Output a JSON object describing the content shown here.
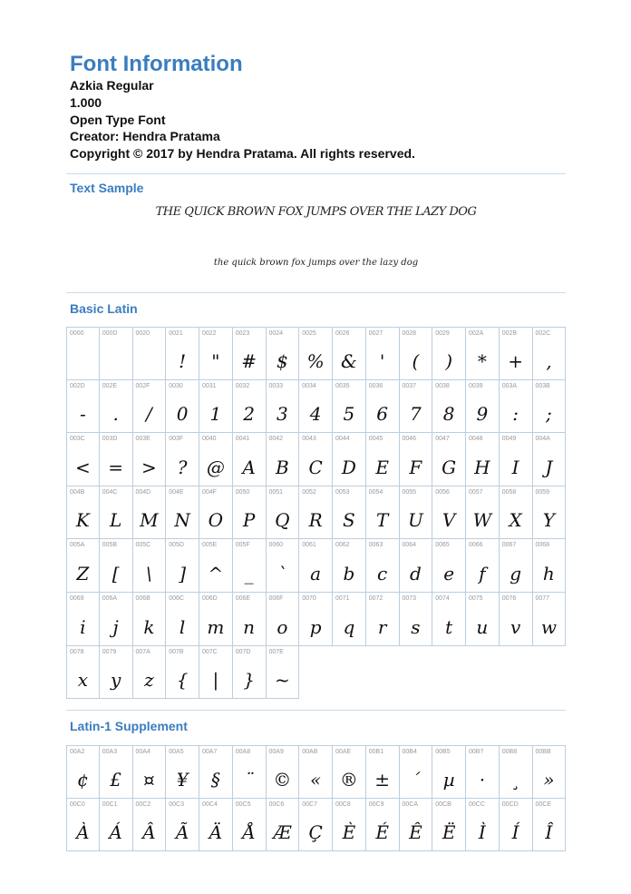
{
  "header": {
    "title": "Font Information",
    "font_name": "Azkia Regular",
    "version": "1.000",
    "font_type": "Open Type Font",
    "creator": "Creator: Hendra Pratama",
    "copyright": "Copyright © 2017 by Hendra Pratama. All rights reserved."
  },
  "text_sample": {
    "heading": "Text Sample",
    "upper": "THE QUICK BROWN FOX JUMPS OVER THE LAZY DOG",
    "lower": "the quick brown fox jumps over the lazy dog"
  },
  "basic_latin": {
    "heading": "Basic Latin",
    "cells": [
      {
        "code": "0000",
        "glyph": ""
      },
      {
        "code": "000D",
        "glyph": ""
      },
      {
        "code": "0020",
        "glyph": ""
      },
      {
        "code": "0021",
        "glyph": "!"
      },
      {
        "code": "0022",
        "glyph": "\""
      },
      {
        "code": "0023",
        "glyph": "#"
      },
      {
        "code": "0024",
        "glyph": "$"
      },
      {
        "code": "0025",
        "glyph": "%"
      },
      {
        "code": "0026",
        "glyph": "&"
      },
      {
        "code": "0027",
        "glyph": "'"
      },
      {
        "code": "0028",
        "glyph": "("
      },
      {
        "code": "0029",
        "glyph": ")"
      },
      {
        "code": "002A",
        "glyph": "*"
      },
      {
        "code": "002B",
        "glyph": "+"
      },
      {
        "code": "002C",
        "glyph": ","
      },
      {
        "code": "002D",
        "glyph": "-"
      },
      {
        "code": "002E",
        "glyph": "."
      },
      {
        "code": "002F",
        "glyph": "/"
      },
      {
        "code": "0030",
        "glyph": "0"
      },
      {
        "code": "0031",
        "glyph": "1"
      },
      {
        "code": "0032",
        "glyph": "2"
      },
      {
        "code": "0033",
        "glyph": "3"
      },
      {
        "code": "0034",
        "glyph": "4"
      },
      {
        "code": "0035",
        "glyph": "5"
      },
      {
        "code": "0036",
        "glyph": "6"
      },
      {
        "code": "0037",
        "glyph": "7"
      },
      {
        "code": "0038",
        "glyph": "8"
      },
      {
        "code": "0039",
        "glyph": "9"
      },
      {
        "code": "003A",
        "glyph": ":"
      },
      {
        "code": "003B",
        "glyph": ";"
      },
      {
        "code": "003C",
        "glyph": "<"
      },
      {
        "code": "003D",
        "glyph": "="
      },
      {
        "code": "003E",
        "glyph": ">"
      },
      {
        "code": "003F",
        "glyph": "?"
      },
      {
        "code": "0040",
        "glyph": "@"
      },
      {
        "code": "0041",
        "glyph": "A"
      },
      {
        "code": "0042",
        "glyph": "B"
      },
      {
        "code": "0043",
        "glyph": "C"
      },
      {
        "code": "0044",
        "glyph": "D"
      },
      {
        "code": "0045",
        "glyph": "E"
      },
      {
        "code": "0046",
        "glyph": "F"
      },
      {
        "code": "0047",
        "glyph": "G"
      },
      {
        "code": "0048",
        "glyph": "H"
      },
      {
        "code": "0049",
        "glyph": "I"
      },
      {
        "code": "004A",
        "glyph": "J"
      },
      {
        "code": "004B",
        "glyph": "K"
      },
      {
        "code": "004C",
        "glyph": "L"
      },
      {
        "code": "004D",
        "glyph": "M"
      },
      {
        "code": "004E",
        "glyph": "N"
      },
      {
        "code": "004F",
        "glyph": "O"
      },
      {
        "code": "0050",
        "glyph": "P"
      },
      {
        "code": "0051",
        "glyph": "Q"
      },
      {
        "code": "0052",
        "glyph": "R"
      },
      {
        "code": "0053",
        "glyph": "S"
      },
      {
        "code": "0054",
        "glyph": "T"
      },
      {
        "code": "0055",
        "glyph": "U"
      },
      {
        "code": "0056",
        "glyph": "V"
      },
      {
        "code": "0057",
        "glyph": "W"
      },
      {
        "code": "0058",
        "glyph": "X"
      },
      {
        "code": "0059",
        "glyph": "Y"
      },
      {
        "code": "005A",
        "glyph": "Z"
      },
      {
        "code": "005B",
        "glyph": "["
      },
      {
        "code": "005C",
        "glyph": "\\"
      },
      {
        "code": "005D",
        "glyph": "]"
      },
      {
        "code": "005E",
        "glyph": "^"
      },
      {
        "code": "005F",
        "glyph": "_"
      },
      {
        "code": "0060",
        "glyph": "`"
      },
      {
        "code": "0061",
        "glyph": "a"
      },
      {
        "code": "0062",
        "glyph": "b"
      },
      {
        "code": "0063",
        "glyph": "c"
      },
      {
        "code": "0064",
        "glyph": "d"
      },
      {
        "code": "0065",
        "glyph": "e"
      },
      {
        "code": "0066",
        "glyph": "f"
      },
      {
        "code": "0067",
        "glyph": "g"
      },
      {
        "code": "0068",
        "glyph": "h"
      },
      {
        "code": "0069",
        "glyph": "i"
      },
      {
        "code": "006A",
        "glyph": "j"
      },
      {
        "code": "006B",
        "glyph": "k"
      },
      {
        "code": "006C",
        "glyph": "l"
      },
      {
        "code": "006D",
        "glyph": "m"
      },
      {
        "code": "006E",
        "glyph": "n"
      },
      {
        "code": "006F",
        "glyph": "o"
      },
      {
        "code": "0070",
        "glyph": "p"
      },
      {
        "code": "0071",
        "glyph": "q"
      },
      {
        "code": "0072",
        "glyph": "r"
      },
      {
        "code": "0073",
        "glyph": "s"
      },
      {
        "code": "0074",
        "glyph": "t"
      },
      {
        "code": "0075",
        "glyph": "u"
      },
      {
        "code": "0076",
        "glyph": "v"
      },
      {
        "code": "0077",
        "glyph": "w"
      },
      {
        "code": "0078",
        "glyph": "x"
      },
      {
        "code": "0079",
        "glyph": "y"
      },
      {
        "code": "007A",
        "glyph": "z"
      },
      {
        "code": "007B",
        "glyph": "{"
      },
      {
        "code": "007C",
        "glyph": "|"
      },
      {
        "code": "007D",
        "glyph": "}"
      },
      {
        "code": "007E",
        "glyph": "~"
      }
    ]
  },
  "latin1": {
    "heading": "Latin-1 Supplement",
    "cells": [
      {
        "code": "00A2",
        "glyph": "¢"
      },
      {
        "code": "00A3",
        "glyph": "£"
      },
      {
        "code": "00A4",
        "glyph": "¤"
      },
      {
        "code": "00A5",
        "glyph": "¥"
      },
      {
        "code": "00A7",
        "glyph": "§"
      },
      {
        "code": "00A8",
        "glyph": "¨"
      },
      {
        "code": "00A9",
        "glyph": "©"
      },
      {
        "code": "00AB",
        "glyph": "«"
      },
      {
        "code": "00AE",
        "glyph": "®"
      },
      {
        "code": "00B1",
        "glyph": "±"
      },
      {
        "code": "00B4",
        "glyph": "´"
      },
      {
        "code": "00B5",
        "glyph": "µ"
      },
      {
        "code": "00B7",
        "glyph": "·"
      },
      {
        "code": "00B8",
        "glyph": "¸"
      },
      {
        "code": "00BB",
        "glyph": "»"
      },
      {
        "code": "00C0",
        "glyph": "À"
      },
      {
        "code": "00C1",
        "glyph": "Á"
      },
      {
        "code": "00C2",
        "glyph": "Â"
      },
      {
        "code": "00C3",
        "glyph": "Ã"
      },
      {
        "code": "00C4",
        "glyph": "Ä"
      },
      {
        "code": "00C5",
        "glyph": "Å"
      },
      {
        "code": "00C6",
        "glyph": "Æ"
      },
      {
        "code": "00C7",
        "glyph": "Ç"
      },
      {
        "code": "00C8",
        "glyph": "È"
      },
      {
        "code": "00C9",
        "glyph": "É"
      },
      {
        "code": "00CA",
        "glyph": "Ê"
      },
      {
        "code": "00CB",
        "glyph": "Ë"
      },
      {
        "code": "00CC",
        "glyph": "Ì"
      },
      {
        "code": "00CD",
        "glyph": "Í"
      },
      {
        "code": "00CE",
        "glyph": "Î"
      }
    ]
  }
}
